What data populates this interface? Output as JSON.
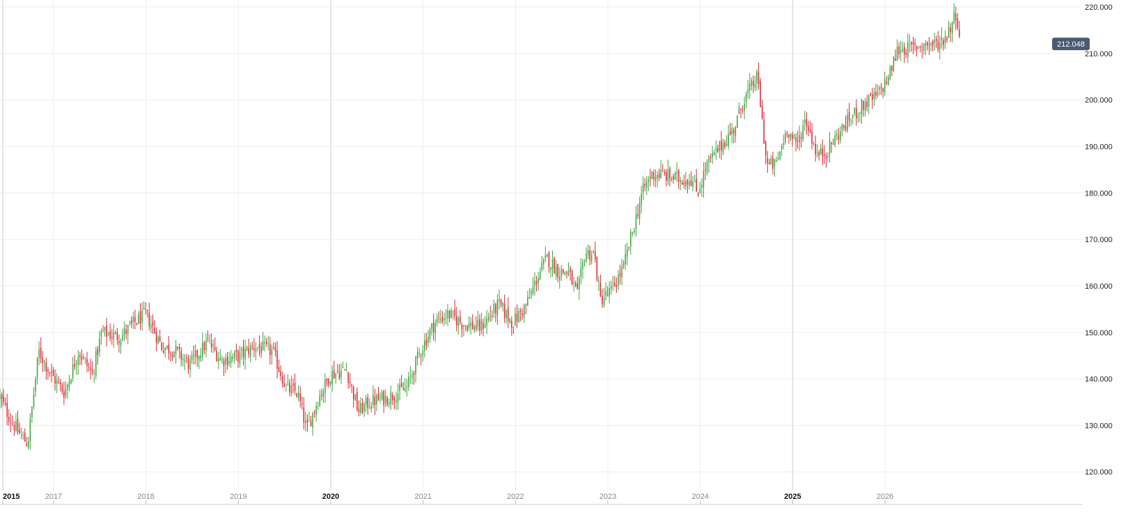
{
  "chart_data": {
    "type": "candlestick",
    "title": "",
    "xlabel": "",
    "ylabel": "",
    "ylim": [
      113,
      221.5
    ],
    "xlim": [
      2015.0,
      2026.72
    ],
    "grid": true,
    "y_ticks": [
      "120.000",
      "130.000",
      "140.000",
      "150.000",
      "160.000",
      "170.000",
      "180.000",
      "190.000",
      "200.000",
      "210.000",
      "220.000"
    ],
    "x_ticks": [
      {
        "label": "2015",
        "x": 2015.03,
        "major": true
      },
      {
        "label": "2017",
        "x": 2015.58,
        "major": false
      },
      {
        "label": "2018",
        "x": 2016.58,
        "major": false
      },
      {
        "label": "2019",
        "x": 2017.58,
        "major": false
      },
      {
        "label": "2020",
        "x": 2018.58,
        "major": true
      },
      {
        "label": "2021",
        "x": 2019.58,
        "major": false
      },
      {
        "label": "2022",
        "x": 2020.58,
        "major": false
      },
      {
        "label": "2023",
        "x": 2021.58,
        "major": false
      },
      {
        "label": "2024",
        "x": 2022.58,
        "major": false
      },
      {
        "label": "2025",
        "x": 2023.58,
        "major": true
      },
      {
        "label": "2026",
        "x": 2024.58,
        "major": false
      }
    ],
    "last_price": "212.048",
    "colors": {
      "up": "#3aa63a",
      "down": "#e0242f",
      "grid": "#eeeeee",
      "price_label": "#4a5b73"
    },
    "close_anchors": [
      [
        2015.0,
        136
      ],
      [
        2015.12,
        131
      ],
      [
        2015.22,
        128
      ],
      [
        2015.3,
        126
      ],
      [
        2015.42,
        146
      ],
      [
        2015.55,
        141
      ],
      [
        2015.7,
        137
      ],
      [
        2015.85,
        146
      ],
      [
        2016.0,
        141
      ],
      [
        2016.1,
        150
      ],
      [
        2016.3,
        149
      ],
      [
        2016.45,
        152
      ],
      [
        2016.58,
        154
      ],
      [
        2016.75,
        147
      ],
      [
        2016.9,
        146
      ],
      [
        2017.05,
        143
      ],
      [
        2017.25,
        148
      ],
      [
        2017.4,
        144
      ],
      [
        2017.6,
        145
      ],
      [
        2017.75,
        147
      ],
      [
        2017.95,
        146
      ],
      [
        2018.1,
        138
      ],
      [
        2018.22,
        137
      ],
      [
        2018.32,
        129
      ],
      [
        2018.45,
        136
      ],
      [
        2018.58,
        141
      ],
      [
        2018.75,
        142
      ],
      [
        2018.88,
        133
      ],
      [
        2019.0,
        135
      ],
      [
        2019.2,
        136
      ],
      [
        2019.4,
        138
      ],
      [
        2019.55,
        146
      ],
      [
        2019.7,
        152
      ],
      [
        2019.85,
        154
      ],
      [
        2020.0,
        152
      ],
      [
        2020.2,
        151
      ],
      [
        2020.4,
        156
      ],
      [
        2020.55,
        152
      ],
      [
        2020.7,
        156
      ],
      [
        2020.82,
        162
      ],
      [
        2020.92,
        166
      ],
      [
        2021.05,
        163
      ],
      [
        2021.15,
        163
      ],
      [
        2021.25,
        158
      ],
      [
        2021.33,
        167
      ],
      [
        2021.43,
        167
      ],
      [
        2021.5,
        157
      ],
      [
        2021.62,
        159
      ],
      [
        2021.75,
        164
      ],
      [
        2021.85,
        172
      ],
      [
        2021.95,
        180
      ],
      [
        2022.05,
        184
      ],
      [
        2022.15,
        184
      ],
      [
        2022.35,
        183
      ],
      [
        2022.48,
        183
      ],
      [
        2022.55,
        180
      ],
      [
        2022.65,
        186
      ],
      [
        2022.8,
        190
      ],
      [
        2022.95,
        194
      ],
      [
        2023.05,
        200
      ],
      [
        2023.2,
        205
      ],
      [
        2023.3,
        186
      ],
      [
        2023.4,
        186
      ],
      [
        2023.52,
        194
      ],
      [
        2023.62,
        190
      ],
      [
        2023.72,
        196
      ],
      [
        2023.85,
        188
      ],
      [
        2023.95,
        189
      ],
      [
        2024.05,
        192
      ],
      [
        2024.2,
        196
      ],
      [
        2024.35,
        199
      ],
      [
        2024.5,
        201
      ],
      [
        2024.62,
        205
      ],
      [
        2024.72,
        211
      ],
      [
        2024.85,
        211
      ],
      [
        2025.0,
        212
      ],
      [
        2025.15,
        212
      ],
      [
        2025.25,
        214
      ],
      [
        2025.35,
        219
      ],
      [
        2025.4,
        212
      ]
    ]
  }
}
